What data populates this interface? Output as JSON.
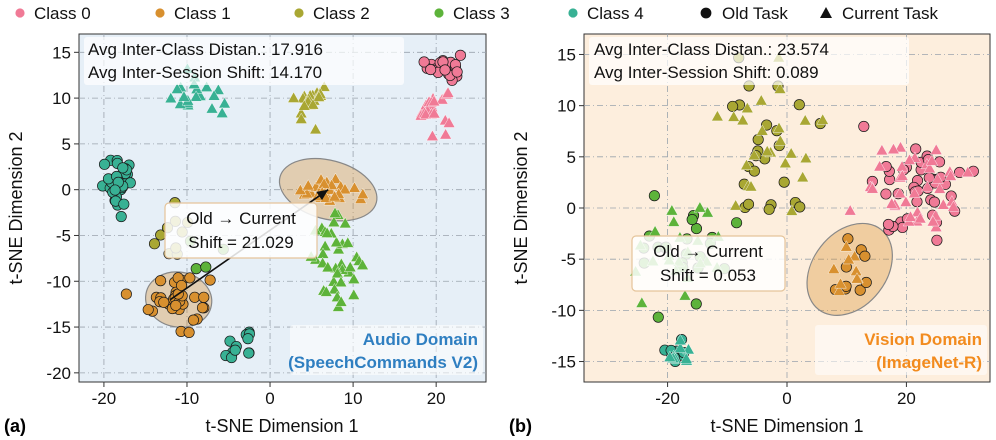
{
  "legend": {
    "items": [
      {
        "label": "Class 0",
        "color": "#f07a96",
        "marker": "circle"
      },
      {
        "label": "Class 1",
        "color": "#d8902f",
        "marker": "circle"
      },
      {
        "label": "Class 2",
        "color": "#a9a733",
        "marker": "circle"
      },
      {
        "label": "Class 3",
        "color": "#5db33a",
        "marker": "circle"
      },
      {
        "label": "Class 4",
        "color": "#38b194",
        "marker": "circle"
      },
      {
        "label": "Old Task",
        "color": "#111111",
        "marker": "circle"
      },
      {
        "label": "Current Task",
        "color": "#111111",
        "marker": "triangle"
      }
    ]
  },
  "chart_data": [
    {
      "type": "scatter",
      "panel_label": "(a)",
      "xlabel": "t-SNE Dimension 1",
      "ylabel": "t-SNE Dimension 2",
      "xlim": [
        -23,
        26
      ],
      "ylim": [
        -21,
        17
      ],
      "xticks": [
        -20,
        -10,
        0,
        10,
        20
      ],
      "yticks": [
        -20,
        -15,
        -10,
        -5,
        0,
        5,
        10,
        15
      ],
      "background": "#e6eff7",
      "stats": [
        "Avg Inter-Class Distan.: 17.916",
        "Avg Inter-Session Shift: 14.170"
      ],
      "domain_label": [
        "Audio Domain",
        "(SpeechCommands V2)"
      ],
      "domain_color": "#2f7fc1",
      "shift_text": [
        "Old → Current",
        "Shift = 21.029"
      ],
      "arrow": {
        "from": [
          -12,
          -12
        ],
        "to": [
          7,
          0
        ]
      },
      "ellipses": [
        {
          "class": 1,
          "cx": -11,
          "cy": -12,
          "rx": 4,
          "ry": 3,
          "angle": 10
        },
        {
          "class": 1,
          "cx": 7,
          "cy": 0,
          "rx": 6,
          "ry": 3.2,
          "angle": 15
        }
      ],
      "clusters": [
        {
          "class": 0,
          "marker": "circle",
          "n": 22,
          "cx": 21,
          "cy": 13.5,
          "sx": 1.3,
          "sy": 1.0
        },
        {
          "class": 0,
          "marker": "triangle",
          "n": 22,
          "cx": 19.5,
          "cy": 9,
          "sx": 1.5,
          "sy": 1.5
        },
        {
          "class": 1,
          "marker": "circle",
          "n": 36,
          "cx": -11,
          "cy": -12,
          "sx": 2.4,
          "sy": 2.2
        },
        {
          "class": 1,
          "marker": "triangle",
          "n": 30,
          "cx": 6.5,
          "cy": 0,
          "sx": 2.4,
          "sy": 0.9
        },
        {
          "class": 2,
          "marker": "circle",
          "n": 10,
          "cx": -12,
          "cy": -5,
          "sx": 1.6,
          "sy": 2.2
        },
        {
          "class": 2,
          "marker": "triangle",
          "n": 22,
          "cx": 5,
          "cy": 9.5,
          "sx": 1.4,
          "sy": 1.3
        },
        {
          "class": 3,
          "marker": "circle",
          "n": 4,
          "cx": -9,
          "cy": -7,
          "sx": 2.5,
          "sy": 2.0
        },
        {
          "class": 3,
          "marker": "triangle",
          "n": 38,
          "cx": 8,
          "cy": -7.5,
          "sx": 2.0,
          "sy": 2.8
        },
        {
          "class": 4,
          "marker": "circle",
          "n": 34,
          "cx": -18,
          "cy": 0.5,
          "sx": 1.4,
          "sy": 2.0
        },
        {
          "class": 4,
          "marker": "circle",
          "n": 12,
          "cx": -4,
          "cy": -17,
          "sx": 1.6,
          "sy": 1.1
        },
        {
          "class": 4,
          "marker": "triangle",
          "n": 20,
          "cx": -9,
          "cy": 10,
          "sx": 2.3,
          "sy": 1.4
        }
      ]
    },
    {
      "type": "scatter",
      "panel_label": "(b)",
      "xlabel": "t-SNE Dimension 1",
      "ylabel": "t-SNE Dimension 2",
      "xlim": [
        -34,
        34
      ],
      "ylim": [
        -17,
        17
      ],
      "xticks": [
        -20,
        0,
        20
      ],
      "yticks": [
        -15,
        -10,
        -5,
        0,
        5,
        10,
        15
      ],
      "background": "#fdeedd",
      "stats": [
        "Avg Inter-Class Distan.: 23.574",
        "Avg Inter-Session Shift: 0.089"
      ],
      "domain_label": [
        "Vision Domain",
        "(ImageNet-R)"
      ],
      "domain_color": "#f28b1e",
      "shift_text": [
        "Old → Current",
        "Shift = 0.053"
      ],
      "arrow": {
        "from": [
          12,
          -6
        ],
        "to": [
          12,
          -6
        ]
      },
      "ellipses": [
        {
          "class": 1,
          "cx": 10.5,
          "cy": -6,
          "rx": 8.5,
          "ry": 3.6,
          "angle": -52
        }
      ],
      "clusters": [
        {
          "class": 0,
          "marker": "circle",
          "n": 42,
          "cx": 22,
          "cy": 1.5,
          "sx": 5.5,
          "sy": 3.0
        },
        {
          "class": 0,
          "marker": "triangle",
          "n": 40,
          "cx": 22,
          "cy": 1.5,
          "sx": 5.5,
          "sy": 3.0
        },
        {
          "class": 1,
          "marker": "circle",
          "n": 9,
          "cx": 11,
          "cy": -6.5,
          "sx": 2.0,
          "sy": 2.0
        },
        {
          "class": 1,
          "marker": "triangle",
          "n": 9,
          "cx": 11,
          "cy": -6.5,
          "sx": 2.0,
          "sy": 2.0
        },
        {
          "class": 2,
          "marker": "circle",
          "n": 24,
          "cx": -3,
          "cy": 6,
          "sx": 5.0,
          "sy": 5.0
        },
        {
          "class": 2,
          "marker": "triangle",
          "n": 24,
          "cx": -3,
          "cy": 6,
          "sx": 5.0,
          "sy": 5.0
        },
        {
          "class": 3,
          "marker": "circle",
          "n": 22,
          "cx": -18,
          "cy": -4,
          "sx": 5.5,
          "sy": 3.8
        },
        {
          "class": 3,
          "marker": "triangle",
          "n": 22,
          "cx": -18,
          "cy": -4,
          "sx": 5.5,
          "sy": 3.8
        },
        {
          "class": 4,
          "marker": "circle",
          "n": 10,
          "cx": -18.5,
          "cy": -14.5,
          "sx": 1.5,
          "sy": 1.1
        },
        {
          "class": 4,
          "marker": "triangle",
          "n": 9,
          "cx": -18.5,
          "cy": -14.5,
          "sx": 1.5,
          "sy": 1.1
        }
      ]
    }
  ]
}
